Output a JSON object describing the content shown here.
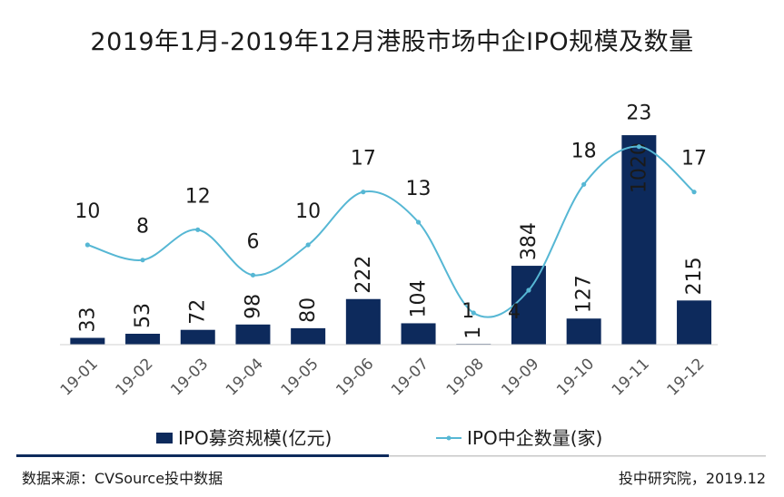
{
  "chart_data": {
    "type": "bar+line",
    "title": "2019年1月-2019年12月港股市场中企IPO规模及数量",
    "categories": [
      "19-01",
      "19-02",
      "19-03",
      "19-04",
      "19-05",
      "19-06",
      "19-07",
      "19-08",
      "19-09",
      "19-10",
      "19-11",
      "19-12"
    ],
    "series": [
      {
        "name": "IPO募资规模(亿元)",
        "type": "bar",
        "values": [
          33,
          53,
          72,
          98,
          80,
          222,
          104,
          1,
          384,
          127,
          1020,
          215
        ],
        "color": "#0d2a5c"
      },
      {
        "name": "IPO中企数量(家)",
        "type": "line",
        "values": [
          10,
          8,
          12,
          6,
          10,
          17,
          13,
          1,
          4,
          18,
          23,
          17
        ],
        "color": "#56b7d4"
      }
    ],
    "bar_ylim": [
      0,
      1060
    ],
    "line_ylim": [
      -2,
      28
    ],
    "xlabel": "",
    "ylabel": "",
    "legend_position": "bottom"
  },
  "footer": {
    "source": "数据来源：CVSource投中数据",
    "credit": "投中研究院，2019.12"
  },
  "colors": {
    "bar": "#0d2a5c",
    "line": "#56b7d4",
    "divider_dark": "#0d2a5c",
    "divider_light": "#c8c8c8"
  }
}
